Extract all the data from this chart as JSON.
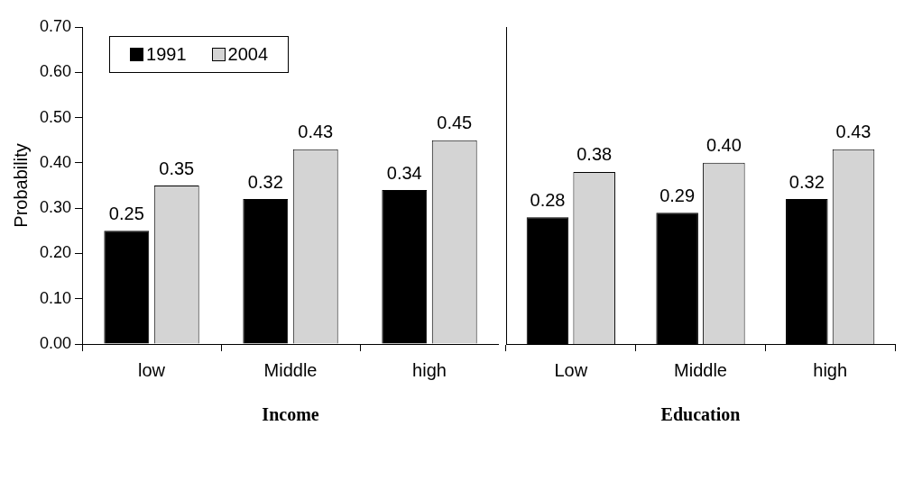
{
  "chart_data": [
    {
      "type": "bar",
      "categories": [
        "low",
        "Middle",
        "high"
      ],
      "series": [
        {
          "name": "1991",
          "color": "#000000",
          "values": [
            0.25,
            0.32,
            0.34
          ],
          "value_labels": [
            "0.25",
            "0.32",
            "0.34"
          ]
        },
        {
          "name": "2004",
          "color": "#d4d4d4",
          "values": [
            0.35,
            0.43,
            0.45
          ],
          "value_labels": [
            "0.35",
            "0.43",
            "0.45"
          ]
        }
      ],
      "xlabel": "Income",
      "ylabel": "Probability",
      "ylim": [
        0,
        0.7
      ],
      "yticks": [
        {
          "value": 0,
          "label": "0.00"
        },
        {
          "value": 0.1,
          "label": "0.10"
        },
        {
          "value": 0.2,
          "label": "0.20"
        },
        {
          "value": 0.3,
          "label": "0.30"
        },
        {
          "value": 0.4,
          "label": "0.40"
        },
        {
          "value": 0.5,
          "label": "0.50"
        },
        {
          "value": 0.6,
          "label": "0.60"
        },
        {
          "value": 0.7,
          "label": "0.70"
        }
      ],
      "grid": false,
      "legend": "top left"
    },
    {
      "type": "bar",
      "categories": [
        "Low",
        "Middle",
        "high"
      ],
      "series": [
        {
          "color": "#000000",
          "values": [
            0.28,
            0.29,
            0.32
          ],
          "value_labels": [
            "0.28",
            "0.29",
            "0.32"
          ]
        },
        {
          "color": "#d4d4d4",
          "values": [
            0.38,
            0.4,
            0.43
          ],
          "value_labels": [
            "0.38",
            "0.40",
            "0.43"
          ]
        }
      ],
      "xlabel": "Education",
      "ylim": [
        0,
        0.7
      ],
      "grid": false,
      "tick_labels": "x"
    }
  ]
}
